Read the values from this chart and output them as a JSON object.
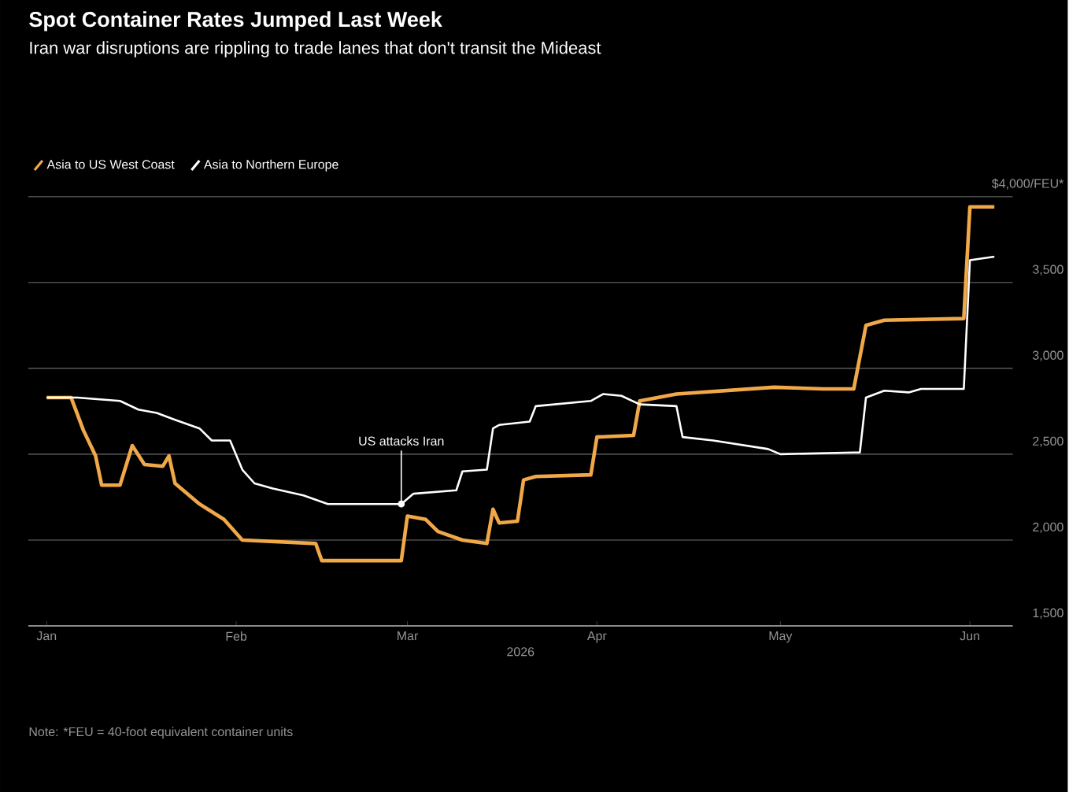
{
  "chart_data": {
    "type": "line",
    "title": "Spot Container Rates Jumped Last Week",
    "subtitle": "Iran war disruptions are rippling to trade lanes that don't transit the Mideast",
    "xlabel": "2026",
    "annotations": [
      {
        "text": "US attacks Iran",
        "x": "2026-02-28",
        "y": 2210
      },
      "Note: *FEU = 40-foot equivalent container units"
    ],
    "series": [
      {
        "name": "Asia to US West Coast",
        "color": "#f0a848",
        "x": [
          "2026-01-01",
          "2026-01-05",
          "2026-01-07",
          "2026-01-09",
          "2026-01-10",
          "2026-01-13",
          "2026-01-15",
          "2026-01-17",
          "2026-01-20",
          "2026-01-21",
          "2026-01-22",
          "2026-01-26",
          "2026-01-30",
          "2026-02-02",
          "2026-02-14",
          "2026-02-15",
          "2026-02-28",
          "2026-03-01",
          "2026-03-04",
          "2026-03-06",
          "2026-03-10",
          "2026-03-14",
          "2026-03-15",
          "2026-03-16",
          "2026-03-19",
          "2026-03-20",
          "2026-03-22",
          "2026-03-31",
          "2026-04-01",
          "2026-04-07",
          "2026-04-08",
          "2026-04-14",
          "2026-04-30",
          "2026-05-08",
          "2026-05-13",
          "2026-05-15",
          "2026-05-18",
          "2026-05-31",
          "2026-06-01",
          "2026-06-05"
        ],
        "values": [
          2830,
          2830,
          2640,
          2490,
          2320,
          2320,
          2550,
          2440,
          2430,
          2490,
          2330,
          2210,
          2120,
          2000,
          1980,
          1880,
          1880,
          2140,
          2120,
          2050,
          2000,
          1980,
          2180,
          2100,
          2110,
          2350,
          2370,
          2380,
          2600,
          2610,
          2810,
          2850,
          2890,
          2880,
          2880,
          3250,
          3280,
          3290,
          3940,
          3940
        ]
      },
      {
        "name": "Asia to Northern Europe",
        "color": "#ffffff",
        "x": [
          "2026-01-01",
          "2026-01-06",
          "2026-01-13",
          "2026-01-16",
          "2026-01-19",
          "2026-01-22",
          "2026-01-26",
          "2026-01-28",
          "2026-01-31",
          "2026-02-02",
          "2026-02-04",
          "2026-02-07",
          "2026-02-12",
          "2026-02-16",
          "2026-02-28",
          "2026-03-02",
          "2026-03-09",
          "2026-03-10",
          "2026-03-14",
          "2026-03-15",
          "2026-03-16",
          "2026-03-21",
          "2026-03-22",
          "2026-03-31",
          "2026-04-02",
          "2026-04-05",
          "2026-04-08",
          "2026-04-14",
          "2026-04-15",
          "2026-04-20",
          "2026-04-29",
          "2026-05-01",
          "2026-05-13",
          "2026-05-14",
          "2026-05-15",
          "2026-05-18",
          "2026-05-22",
          "2026-05-24",
          "2026-05-31",
          "2026-06-01",
          "2026-06-05"
        ],
        "values": [
          2830,
          2830,
          2810,
          2760,
          2740,
          2700,
          2650,
          2580,
          2580,
          2410,
          2330,
          2300,
          2260,
          2210,
          2210,
          2270,
          2290,
          2400,
          2410,
          2650,
          2670,
          2690,
          2780,
          2810,
          2850,
          2840,
          2790,
          2780,
          2600,
          2580,
          2530,
          2500,
          2510,
          2510,
          2830,
          2870,
          2860,
          2880,
          2880,
          3630,
          3650
        ]
      }
    ],
    "xlim": [
      "2025-12-29",
      "2026-06-08"
    ],
    "xticks": [
      {
        "value": "2026-01-01",
        "label": "Jan"
      },
      {
        "value": "2026-02-01",
        "label": "Feb"
      },
      {
        "value": "2026-03-01",
        "label": "Mar"
      },
      {
        "value": "2026-04-01",
        "label": "Apr"
      },
      {
        "value": "2026-05-01",
        "label": "May"
      },
      {
        "value": "2026-06-01",
        "label": "Jun"
      }
    ],
    "ylim": [
      1500,
      4000
    ],
    "yticks": [
      {
        "value": 1500,
        "label": "1,500"
      },
      {
        "value": 2000,
        "label": "2,000"
      },
      {
        "value": 2500,
        "label": "2,500"
      },
      {
        "value": 3000,
        "label": "3,000"
      },
      {
        "value": 3500,
        "label": "3,500"
      },
      {
        "value": 4000,
        "label": "$4,000/FEU*"
      }
    ],
    "grid": "y",
    "legend": "top left"
  }
}
